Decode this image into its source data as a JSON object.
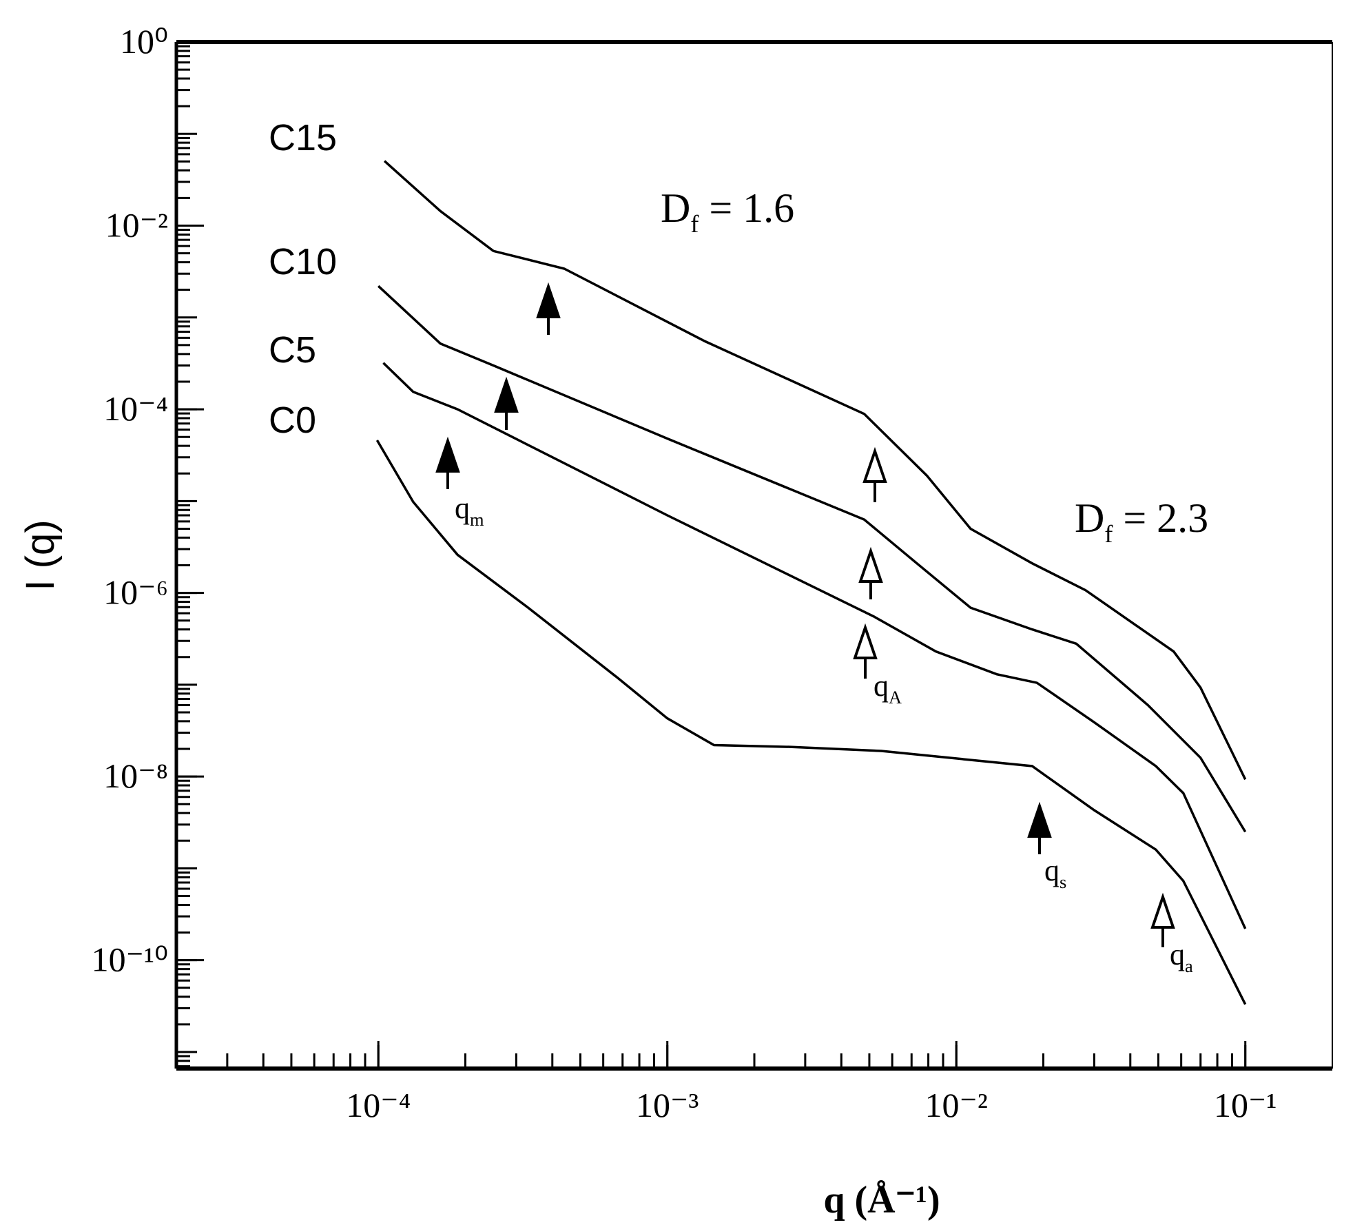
{
  "chart_data": {
    "type": "line",
    "x_label": "q (Å⁻¹)",
    "y_label": "I (q)",
    "log_x": true,
    "log_y": true,
    "xlim": [
      2e-05,
      0.2
    ],
    "ylim": [
      6.6e-12,
      1
    ],
    "xticks": [
      {
        "value": 0.0001,
        "label": "10⁻⁴"
      },
      {
        "value": 0.001,
        "label": "10⁻³"
      },
      {
        "value": 0.01,
        "label": "10⁻²"
      },
      {
        "value": 0.1,
        "label": "10⁻¹"
      }
    ],
    "yticks": [
      {
        "value": 1,
        "label": "10⁰"
      },
      {
        "value": 0.01,
        "label": "10⁻²"
      },
      {
        "value": 0.0001,
        "label": "10⁻⁴"
      },
      {
        "value": 1e-06,
        "label": "10⁻⁶"
      },
      {
        "value": 1e-08,
        "label": "10⁻⁸"
      },
      {
        "value": 1e-10,
        "label": "10⁻¹⁰"
      }
    ],
    "series": [
      {
        "name": "C15",
        "color": "#000000",
        "x": [
          0.000105,
          0.000164,
          0.00025,
          0.00044,
          0.00135,
          0.0048,
          0.0079,
          0.0112,
          0.0183,
          0.028,
          0.0565,
          0.07,
          0.1
        ],
        "values": [
          0.0506,
          0.0144,
          0.0053,
          0.0034,
          0.00055,
          8.9e-05,
          1.9e-05,
          5e-06,
          2.1e-06,
          1.07e-06,
          2.3e-07,
          9.3e-08,
          9.3e-09
        ]
      },
      {
        "name": "C10",
        "color": "#000000",
        "x": [
          0.0001,
          0.000164,
          0.00025,
          0.001,
          0.0048,
          0.0073,
          0.0112,
          0.0183,
          0.026,
          0.046,
          0.07,
          0.1
        ],
        "values": [
          0.0022,
          0.00052,
          0.0003,
          4.8e-05,
          6.3e-06,
          2.1e-06,
          6.9e-07,
          4e-07,
          2.8e-07,
          6e-08,
          1.6e-08,
          2.5e-09
        ]
      },
      {
        "name": "C5",
        "color": "#000000",
        "x": [
          0.000104,
          0.000132,
          0.000188,
          0.001,
          0.0052,
          0.0085,
          0.0138,
          0.019,
          0.03,
          0.049,
          0.061,
          0.1
        ],
        "values": [
          0.00032,
          0.000155,
          0.0001,
          7e-06,
          5.5e-07,
          2.3e-07,
          1.3e-07,
          1.05e-07,
          3.9e-08,
          1.3e-08,
          6.6e-09,
          2.2e-10
        ]
      },
      {
        "name": "C0",
        "color": "#000000",
        "x": [
          9.9e-05,
          0.000132,
          0.000188,
          0.00033,
          0.00067,
          0.001,
          0.00145,
          0.0027,
          0.0055,
          0.0183,
          0.03,
          0.049,
          0.061,
          0.1
        ],
        "values": [
          4.6e-05,
          9.8e-06,
          2.6e-06,
          6.9e-07,
          1.2e-07,
          4.3e-08,
          2.2e-08,
          2.1e-08,
          1.9e-08,
          1.3e-08,
          4.3e-09,
          1.6e-09,
          7.3e-10,
          3.3e-11
        ]
      }
    ],
    "annotations": [
      {
        "main": "D",
        "sub": "f",
        "rest": " = 1.6"
      },
      {
        "main": "D",
        "sub": "f",
        "rest": " = 2.3"
      },
      {
        "main": "q",
        "sub": "m"
      },
      {
        "main": "q",
        "sub": "A"
      },
      {
        "main": "q",
        "sub": "s"
      },
      {
        "main": "q",
        "sub": "a"
      }
    ]
  }
}
